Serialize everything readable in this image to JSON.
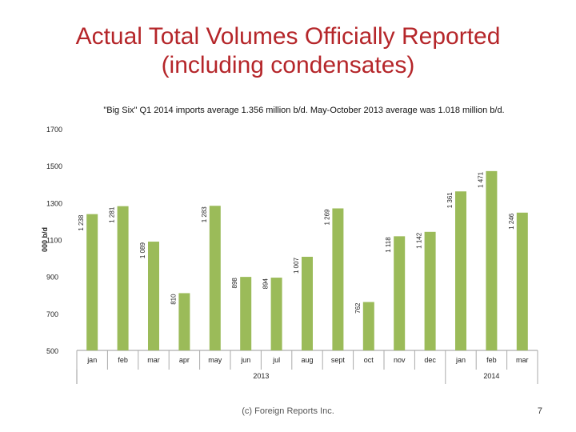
{
  "slide": {
    "title_line1": "Actual Total Volumes Officially Reported",
    "title_line2": "(including condensates)",
    "subtitle": "\"Big Six\" Q1 2014 imports average 1.356 million b/d. May-October 2013 average was 1.018 million b/d.",
    "footer": "(c) Foreign Reports Inc.",
    "page_number": "7"
  },
  "chart_data": {
    "type": "bar",
    "categories": [
      "jan",
      "feb",
      "mar",
      "apr",
      "may",
      "jun",
      "jul",
      "aug",
      "sept",
      "oct",
      "nov",
      "dec",
      "jan",
      "feb",
      "mar"
    ],
    "year_groups": [
      {
        "label": "2013",
        "count": 12
      },
      {
        "label": "2014",
        "count": 3
      }
    ],
    "values": [
      1238,
      1281,
      1089,
      810,
      1283,
      898,
      894,
      1007,
      1269,
      762,
      1118,
      1142,
      1361,
      1471,
      1246
    ],
    "data_labels": [
      "1 238",
      "1 281",
      "1 089",
      "810",
      "1 283",
      "898",
      "894",
      "1 007",
      "1 269",
      "762",
      "1 118",
      "1 142",
      "1 361",
      "1 471",
      "1 246"
    ],
    "ylabel": "000 b/d",
    "ylim": [
      500,
      1700
    ],
    "yticks": [
      500,
      700,
      900,
      1100,
      1300,
      1500,
      1700
    ],
    "ytick_labels": [
      "500",
      "700",
      "900",
      "1100",
      "1300",
      "1500",
      "1700"
    ],
    "bar_color": "#9bbb59",
    "grid": false
  }
}
